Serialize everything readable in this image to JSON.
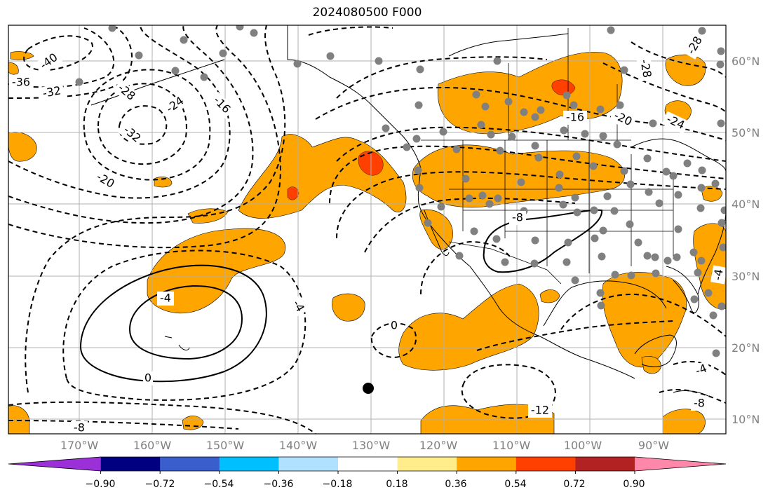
{
  "title": "2024080500 F000",
  "lat_labels": [
    "60°N",
    "50°N",
    "40°N",
    "30°N",
    "20°N",
    "10°N"
  ],
  "lon_labels": [
    "170°W",
    "160°W",
    "150°W",
    "140°W",
    "130°W",
    "120°W",
    "110°W",
    "100°W",
    "90°W"
  ],
  "colorbar": {
    "ticks": [
      "−0.90",
      "−0.72",
      "−0.54",
      "−0.36",
      "−0.18",
      "0.18",
      "0.36",
      "0.54",
      "0.72",
      "0.90"
    ],
    "colors": [
      "#9b30d9",
      "#000080",
      "#3a5fcd",
      "#00bfff",
      "#b0e2ff",
      "#ffffff",
      "#ffec8b",
      "#ffa500",
      "#ff4000",
      "#b22222",
      "#ff88aa"
    ]
  },
  "contour_labels": [
    "-40",
    "-36",
    "-32",
    "-28",
    "-24",
    "-16",
    "-32",
    "-20",
    "-4",
    "-4",
    "0",
    "-8",
    "-8",
    "0",
    "-28",
    "-20",
    "-24",
    "-16",
    "-4",
    "-28",
    "-4",
    "-8",
    "-12"
  ],
  "colors": {
    "fill_orange": "#ffa500",
    "fill_red": "#ff4000",
    "grid": "#b0b0b0",
    "label": "#808080"
  }
}
